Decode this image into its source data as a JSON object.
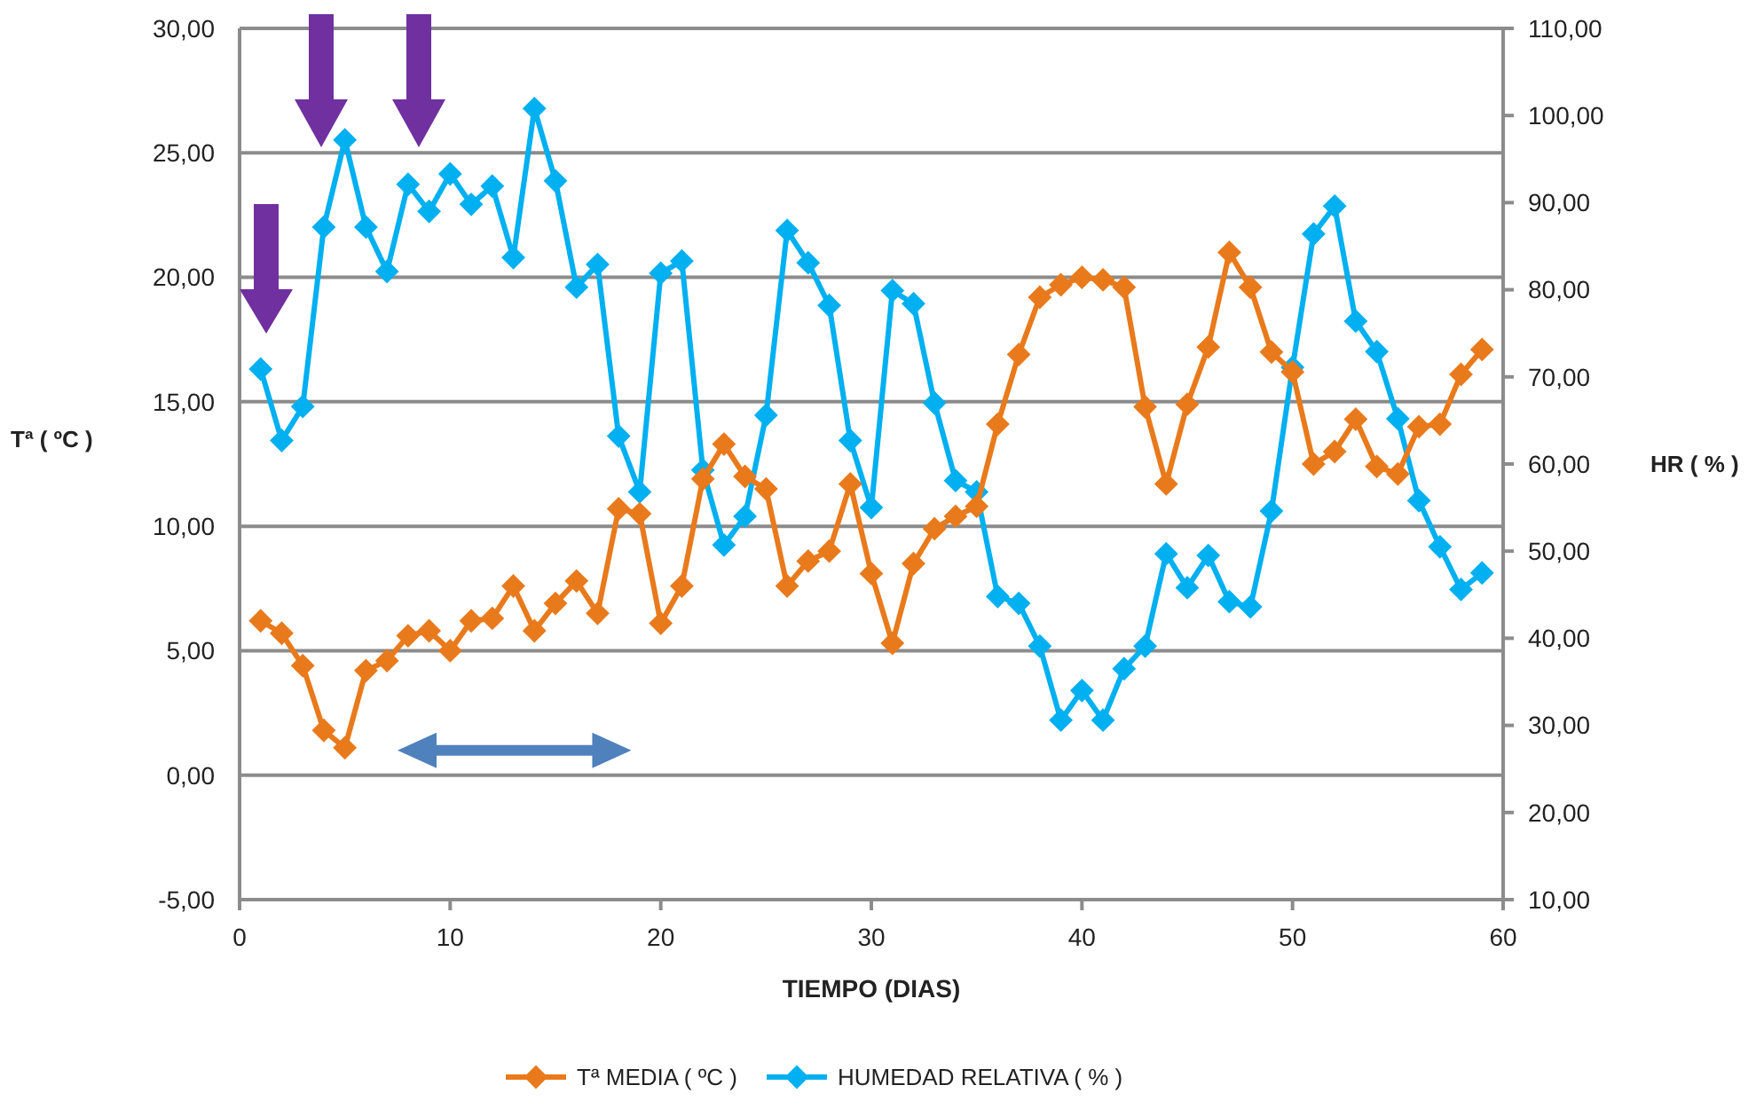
{
  "chart_data": {
    "type": "line",
    "xlabel": "TIEMPO (DIAS)",
    "ylabel": "Tª ( ºC )",
    "y2label": "HR ( % )",
    "x": [
      1,
      2,
      3,
      4,
      5,
      6,
      7,
      8,
      9,
      10,
      11,
      12,
      13,
      14,
      15,
      16,
      17,
      18,
      19,
      20,
      21,
      22,
      23,
      24,
      25,
      26,
      27,
      28,
      29,
      30,
      31,
      32,
      33,
      34,
      35,
      36,
      37,
      38,
      39,
      40,
      41,
      42,
      43,
      44,
      45,
      46,
      47,
      48,
      49,
      50,
      51,
      52,
      53,
      54,
      55,
      56,
      57,
      58,
      59
    ],
    "series": [
      {
        "name": "Tª MEDIA ( ºC )",
        "color": "#e97a1c",
        "values": [
          6.2,
          5.7,
          4.4,
          1.8,
          1.1,
          4.2,
          4.6,
          5.6,
          5.8,
          5.0,
          6.2,
          6.3,
          7.6,
          5.8,
          6.9,
          7.8,
          6.5,
          10.7,
          10.5,
          6.1,
          7.6,
          11.9,
          13.3,
          12.0,
          11.5,
          7.6,
          8.6,
          9.0,
          11.7,
          8.1,
          5.3,
          8.5,
          9.9,
          10.4,
          10.8,
          14.1,
          16.9,
          19.2,
          19.7,
          20.0,
          19.9,
          19.6,
          14.8,
          11.7,
          14.9,
          17.2,
          21.0,
          19.6,
          17.0,
          16.2,
          12.5,
          13.0,
          14.3,
          12.4,
          12.1,
          14.0,
          14.1,
          16.1,
          17.1
        ]
      },
      {
        "name": "HUMEDAD RELATIVA ( % )",
        "color": "#00b0f0",
        "axis": "y2",
        "values": [
          70.9,
          62.7,
          66.6,
          87.2,
          97.2,
          87.2,
          82.1,
          92.1,
          89.0,
          93.3,
          89.8,
          91.9,
          83.7,
          100.8,
          92.5,
          80.3,
          82.9,
          63.2,
          56.8,
          81.9,
          83.3,
          59.3,
          50.7,
          54.0,
          65.6,
          86.8,
          83.1,
          78.2,
          62.7,
          55.0,
          79.9,
          78.4,
          67.0,
          58.1,
          56.8,
          44.8,
          44.0,
          39.1,
          30.6,
          34.0,
          30.6,
          36.5,
          39.1,
          49.7,
          45.8,
          49.5,
          44.2,
          43.6,
          54.6,
          71.1,
          86.4,
          89.6,
          76.4,
          72.9,
          65.2,
          55.8,
          50.5,
          45.6,
          47.5
        ]
      }
    ],
    "xlim": [
      0,
      60
    ],
    "xticks": [
      0,
      10,
      20,
      30,
      40,
      50,
      60
    ],
    "ylim": [
      -5,
      30
    ],
    "yticks": [
      {
        "value": -5,
        "label": "-5,00"
      },
      {
        "value": 0,
        "label": "0,00"
      },
      {
        "value": 5,
        "label": "5,00"
      },
      {
        "value": 10,
        "label": "10,00"
      },
      {
        "value": 15,
        "label": "15,00"
      },
      {
        "value": 20,
        "label": "20,00"
      },
      {
        "value": 25,
        "label": "25,00"
      },
      {
        "value": 30,
        "label": "30,00"
      }
    ],
    "y2lim": [
      10,
      110
    ],
    "y2ticks": [
      {
        "value": 10,
        "label": "10,00"
      },
      {
        "value": 20,
        "label": "20,00"
      },
      {
        "value": 30,
        "label": "30,00"
      },
      {
        "value": 40,
        "label": "40,00"
      },
      {
        "value": 50,
        "label": "50,00"
      },
      {
        "value": 60,
        "label": "60,00"
      },
      {
        "value": 70,
        "label": "70,00"
      },
      {
        "value": 80,
        "label": "80,00"
      },
      {
        "value": 90,
        "label": "90,00"
      },
      {
        "value": 100,
        "label": "100,00"
      },
      {
        "value": 110,
        "label": "110,00"
      }
    ],
    "grid": "y",
    "legend": "bottom",
    "marker": "diamond",
    "line_style": "solid"
  }
}
